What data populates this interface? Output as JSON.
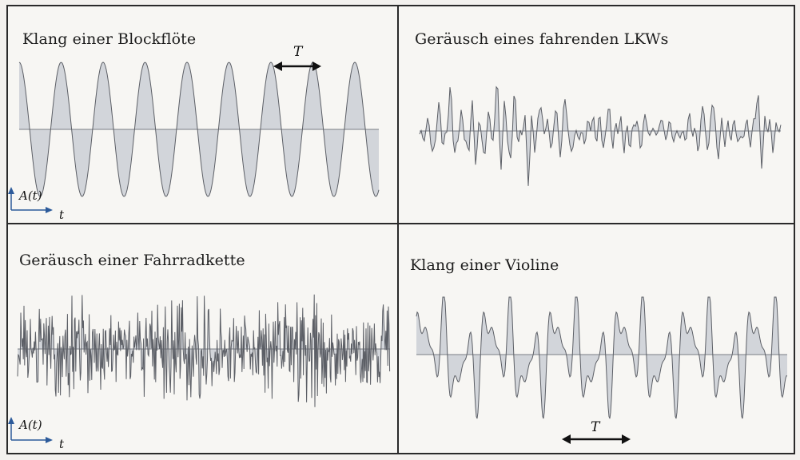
{
  "figure": {
    "panels": [
      {
        "id": "blockfloete",
        "title": "Klang einer Blockflöte",
        "period_label": "T",
        "axis_y_label": "A(t)",
        "axis_x_label": "t",
        "waveform": "periodic"
      },
      {
        "id": "lkw",
        "title": "Geräusch eines fahrenden LKWs",
        "waveform": "noise-low-frequency"
      },
      {
        "id": "fahrradkette",
        "title": "Geräusch einer Fahrradkette",
        "axis_y_label": "A(t)",
        "axis_x_label": "t",
        "waveform": "noise-high-frequency"
      },
      {
        "id": "violine",
        "title": "Klang einer Violine",
        "period_label": "T",
        "waveform": "periodic-complex"
      }
    ]
  },
  "colors": {
    "border": "#2a2a2a",
    "wave_fill": "#d2d5da",
    "wave_stroke": "#5c5f66",
    "baseline": "#7a7d84",
    "arrow": "#111111"
  }
}
